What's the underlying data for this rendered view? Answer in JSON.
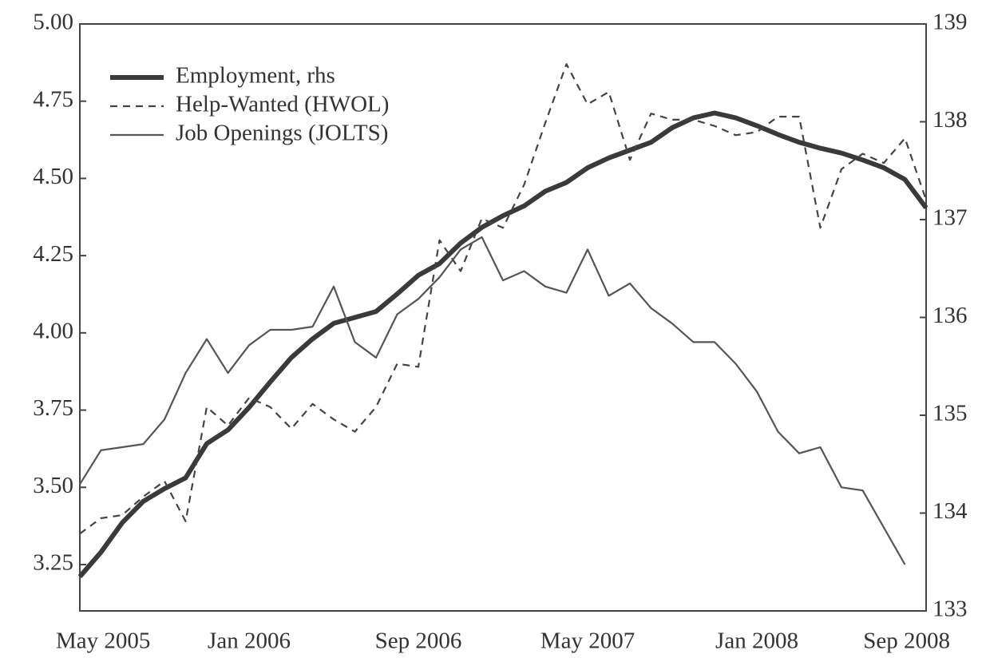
{
  "chart_data": {
    "type": "line",
    "categories": [
      "May 2005",
      null,
      null,
      null,
      null,
      null,
      null,
      null,
      "Jan 2006",
      null,
      null,
      null,
      null,
      null,
      null,
      null,
      "Sep 2006",
      null,
      null,
      null,
      null,
      null,
      null,
      null,
      "May 2007",
      null,
      null,
      null,
      null,
      null,
      null,
      null,
      "Jan 2008",
      null,
      null,
      null,
      null,
      null,
      null,
      null,
      "Sep 2008"
    ],
    "series": [
      {
        "name": "Employment, rhs",
        "color": "#3a3a3a",
        "axis": "y2",
        "style": "thick",
        "values": [
          133.35,
          133.6,
          133.9,
          134.12,
          134.25,
          134.36,
          134.71,
          134.85,
          135.08,
          135.34,
          135.59,
          135.78,
          135.94,
          136.0,
          136.06,
          136.24,
          136.43,
          136.55,
          136.76,
          136.92,
          137.04,
          137.14,
          137.29,
          137.38,
          137.53,
          137.63,
          137.71,
          137.79,
          137.94,
          138.04,
          138.09,
          138.04,
          137.96,
          137.87,
          137.79,
          137.73,
          137.68,
          137.61,
          137.53,
          137.41,
          137.12
        ]
      },
      {
        "name": "Help-Wanted (HWOL)",
        "color": "#444444",
        "style": "dashed",
        "values": [
          3.35,
          3.4,
          3.41,
          3.47,
          3.52,
          3.39,
          3.76,
          3.7,
          3.79,
          3.76,
          3.69,
          3.77,
          3.72,
          3.68,
          3.76,
          3.9,
          3.89,
          4.3,
          4.2,
          4.37,
          4.34,
          4.48,
          4.68,
          4.87,
          4.74,
          4.78,
          4.56,
          4.71,
          4.69,
          4.69,
          4.67,
          4.64,
          4.65,
          4.7,
          4.7,
          4.34,
          4.53,
          4.58,
          4.55,
          4.63,
          4.43
        ]
      },
      {
        "name": "Job Openings (JOLTS)",
        "color": "#555555",
        "style": "solid",
        "values": [
          3.51,
          3.62,
          3.63,
          3.64,
          3.72,
          3.87,
          3.98,
          3.87,
          3.96,
          4.01,
          4.01,
          4.02,
          4.15,
          3.97,
          3.92,
          4.06,
          4.11,
          4.18,
          4.27,
          4.31,
          4.17,
          4.2,
          4.15,
          4.13,
          4.27,
          4.12,
          4.16,
          4.08,
          4.03,
          3.97,
          3.97,
          3.9,
          3.81,
          3.68,
          3.61,
          3.63,
          3.5,
          3.49,
          3.37,
          3.25,
          null
        ]
      }
    ],
    "ylim": [
      3.1,
      5.0
    ],
    "yticks": [
      3.25,
      {
        "value": 3.5,
        "label": "3.50"
      },
      3.75,
      {
        "value": 4,
        "label": "4.00"
      },
      4.25,
      {
        "value": 4.5,
        "label": "4.50"
      },
      4.75,
      {
        "value": 5,
        "label": "5.00"
      }
    ],
    "y2lim": [
      133,
      139
    ],
    "y2ticks": [
      133,
      134,
      135,
      136,
      137,
      138,
      139
    ],
    "legend": "upper left",
    "grid": false
  }
}
